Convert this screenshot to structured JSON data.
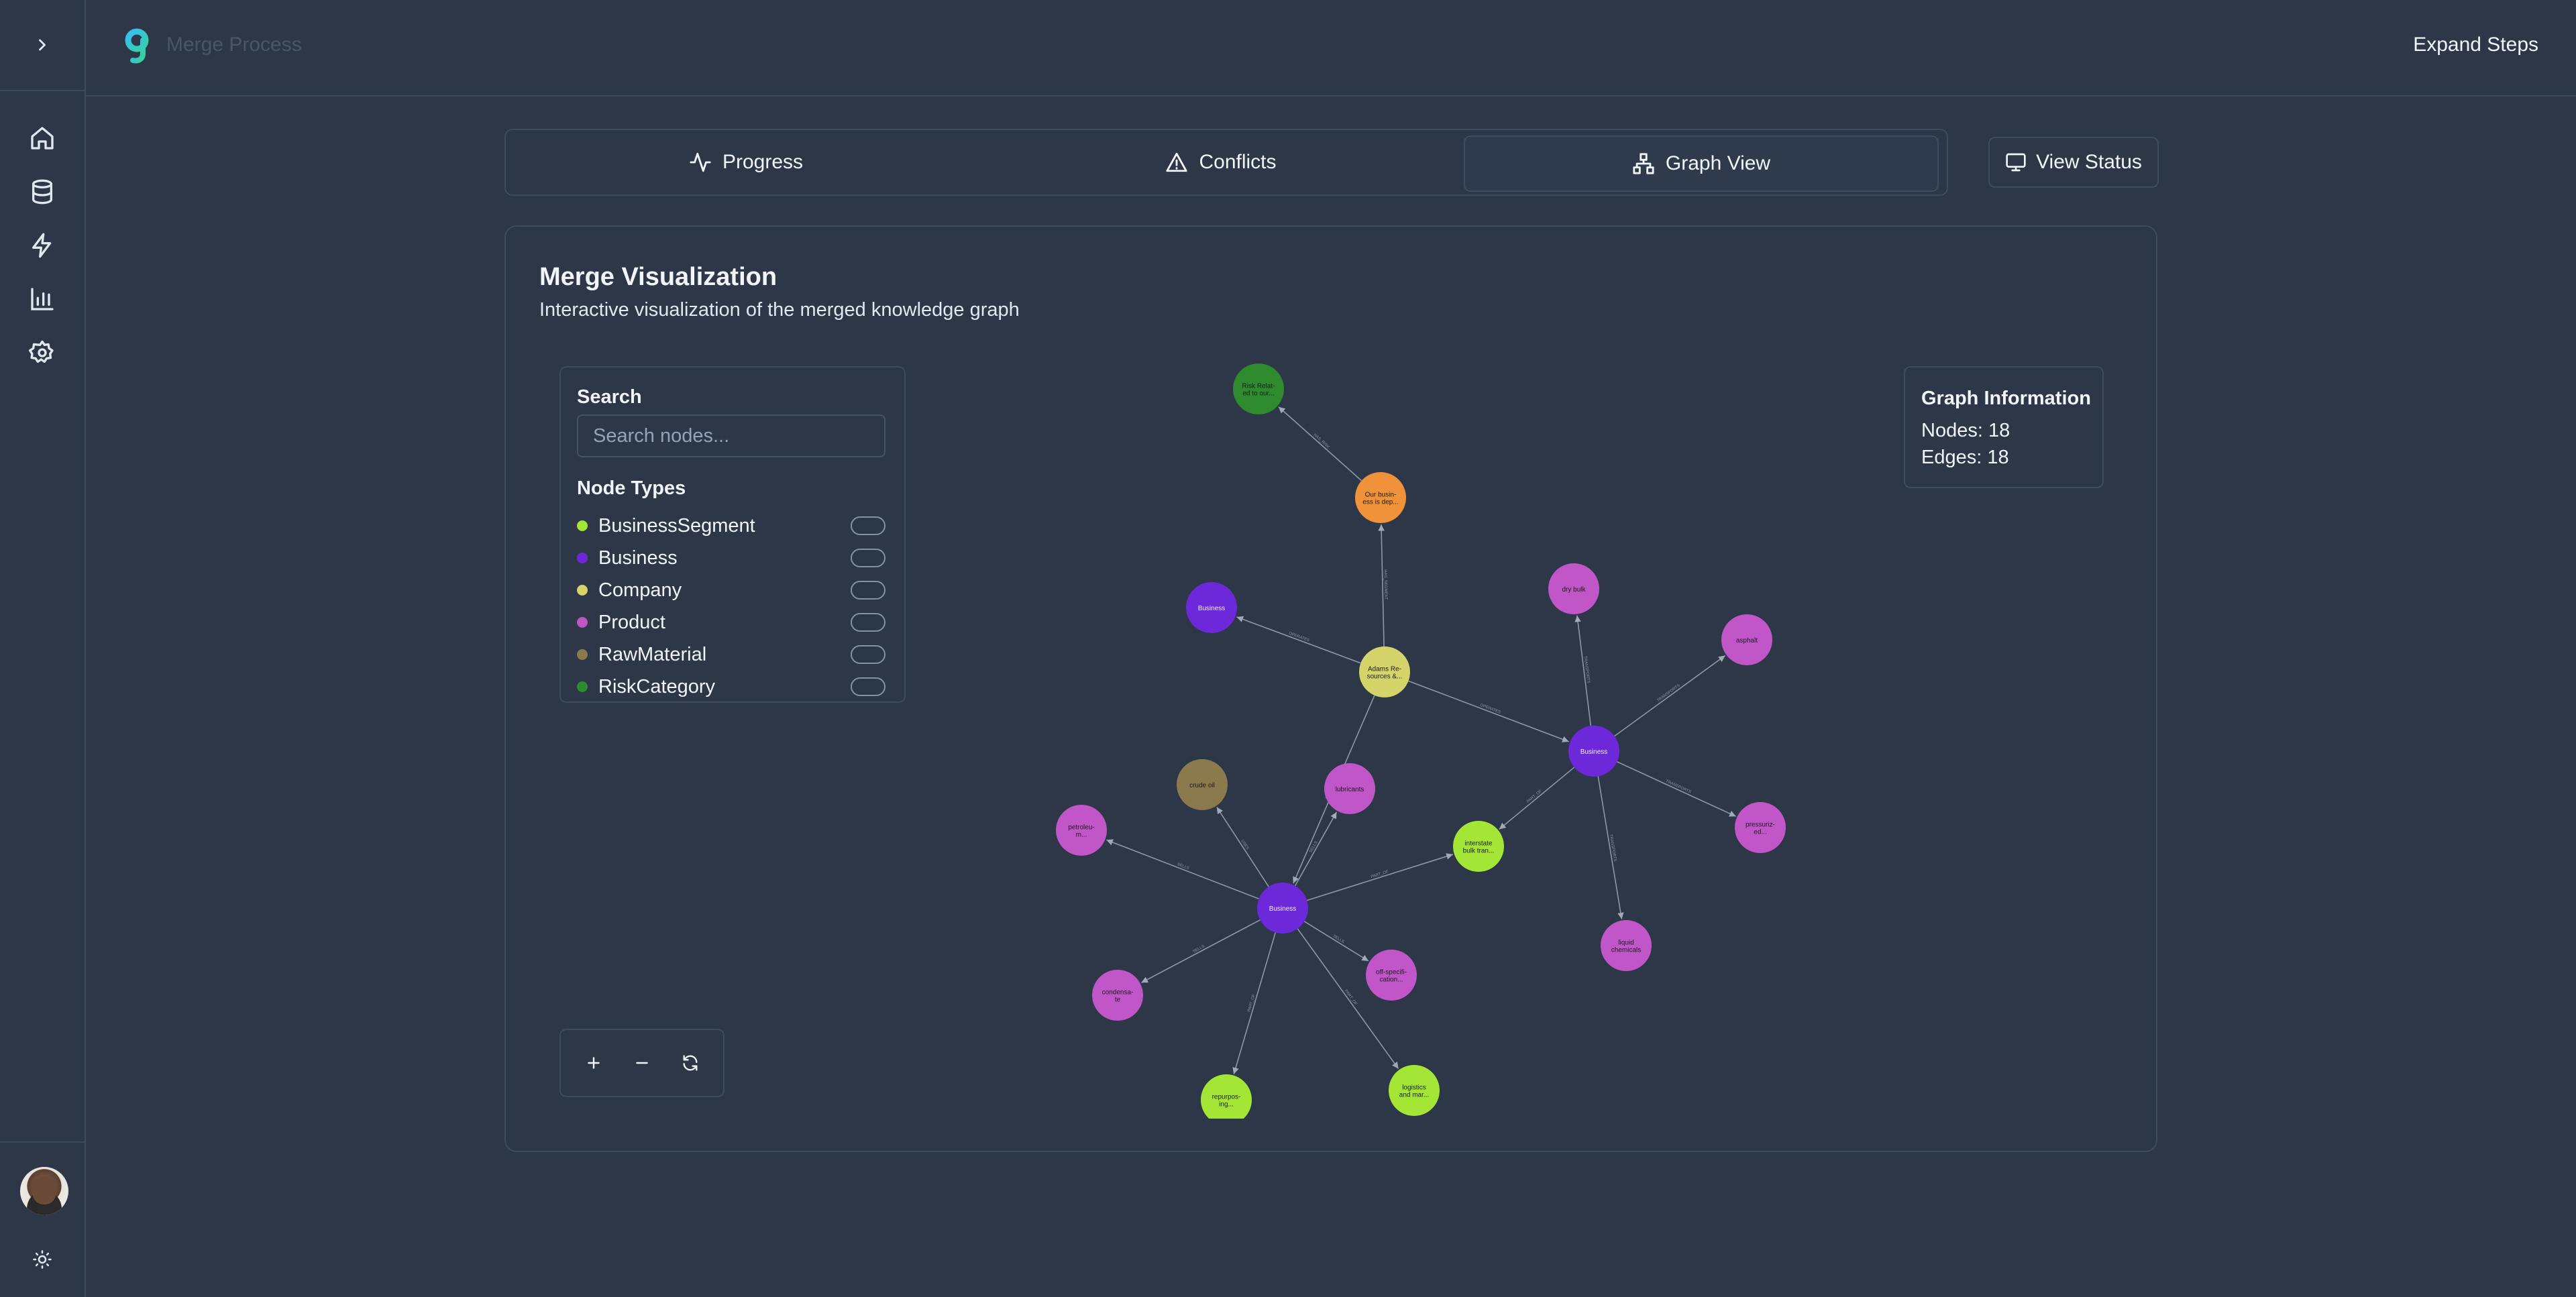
{
  "header": {
    "app_title": "Merge Process",
    "expand_label": "Expand Steps"
  },
  "tabs": [
    {
      "label": "Progress",
      "icon": "activity-icon"
    },
    {
      "label": "Conflicts",
      "icon": "warning-icon"
    },
    {
      "label": "Graph View",
      "icon": "network-icon",
      "active": true
    }
  ],
  "view_status_label": "View Status",
  "card": {
    "title": "Merge Visualization",
    "subtitle": "Interactive visualization of the merged knowledge graph"
  },
  "filter": {
    "search_label": "Search",
    "search_placeholder": "Search nodes...",
    "node_types_label": "Node Types",
    "node_types": [
      {
        "label": "BusinessSegment",
        "color": "#a3e635"
      },
      {
        "label": "Business",
        "color": "#6d28d9"
      },
      {
        "label": "Company",
        "color": "#d4d46a"
      },
      {
        "label": "Product",
        "color": "#c056c8"
      },
      {
        "label": "RawMaterial",
        "color": "#8b7a4e"
      },
      {
        "label": "RiskCategory",
        "color": "#2e8b2e"
      }
    ]
  },
  "graph_info": {
    "title": "Graph Information",
    "nodes_label": "Nodes: 18",
    "edges_label": "Edges: 18"
  },
  "graph": {
    "nodes": [
      {
        "id": "risk",
        "label": "Risk Relat-\ned to our...",
        "type": "RiskCategory"
      },
      {
        "id": "seg",
        "label": "Our busin-\ness is dep...",
        "type": "Segment"
      },
      {
        "id": "biz1",
        "label": "Business",
        "type": "Business"
      },
      {
        "id": "comp",
        "label": "Adams Re-\nsources &...",
        "type": "Company"
      },
      {
        "id": "drybulk",
        "label": "dry bulk",
        "type": "Product"
      },
      {
        "id": "asphalt",
        "label": "asphalt",
        "type": "Product"
      },
      {
        "id": "biz2",
        "label": "Business",
        "type": "Business"
      },
      {
        "id": "crude",
        "label": "crude oil",
        "type": "RawMaterial"
      },
      {
        "id": "lub",
        "label": "lubricants",
        "type": "Product"
      },
      {
        "id": "interstate",
        "label": "interstate\nbulk tran...",
        "type": "BusinessSegment"
      },
      {
        "id": "pressur",
        "label": "pressuriz-\ned...",
        "type": "Product"
      },
      {
        "id": "petrol",
        "label": "petroleu-\nm...",
        "type": "Product"
      },
      {
        "id": "biz3",
        "label": "Business",
        "type": "Business"
      },
      {
        "id": "liquid",
        "label": "liquid\nchemicals",
        "type": "Product"
      },
      {
        "id": "offspec",
        "label": "off-specifi-\ncation...",
        "type": "Product"
      },
      {
        "id": "condens",
        "label": "condensa-\nte",
        "type": "Product"
      },
      {
        "id": "logistics",
        "label": "logistics\nand mar...",
        "type": "BusinessSegment"
      },
      {
        "id": "repurp",
        "label": "repurpos-\ning...",
        "type": "BusinessSegment"
      }
    ],
    "edges": [
      {
        "from": "seg",
        "to": "risk",
        "label": "HAS_RISK"
      },
      {
        "from": "comp",
        "to": "seg",
        "label": "HAS_SEGMENT"
      },
      {
        "from": "comp",
        "to": "biz1",
        "label": "OPERATES"
      },
      {
        "from": "comp",
        "to": "biz2",
        "label": "OPERATES"
      },
      {
        "from": "comp",
        "to": "biz3",
        "label": "OPERATES"
      },
      {
        "from": "biz2",
        "to": "drybulk",
        "label": "TRANSPORTS"
      },
      {
        "from": "biz2",
        "to": "asphalt",
        "label": "TRANSPORTS"
      },
      {
        "from": "biz2",
        "to": "pressur",
        "label": "TRANSPORTS"
      },
      {
        "from": "biz2",
        "to": "liquid",
        "label": "TRANSPORTS"
      },
      {
        "from": "biz2",
        "to": "interstate",
        "label": "PART_OF"
      },
      {
        "from": "biz3",
        "to": "crude",
        "label": "USES"
      },
      {
        "from": "biz3",
        "to": "lub",
        "label": "SELLS"
      },
      {
        "from": "biz3",
        "to": "petrol",
        "label": "SELLS"
      },
      {
        "from": "biz3",
        "to": "interstate",
        "label": "PART_OF"
      },
      {
        "from": "biz3",
        "to": "offspec",
        "label": "SELLS"
      },
      {
        "from": "biz3",
        "to": "condens",
        "label": "SELLS"
      },
      {
        "from": "biz3",
        "to": "logistics",
        "label": "PART_OF"
      },
      {
        "from": "biz3",
        "to": "repurp",
        "label": "PART_OF"
      }
    ]
  }
}
